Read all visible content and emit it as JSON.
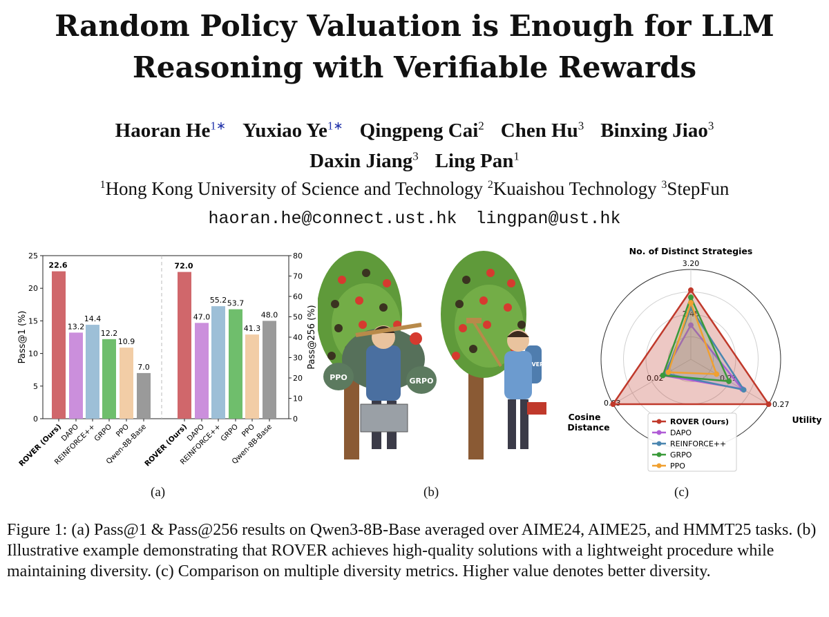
{
  "paper": {
    "title_line1": "Random Policy Valuation is Enough for LLM",
    "title_line2": "Reasoning with Verifiable Rewards",
    "authors_line1": [
      {
        "name": "Haoran He",
        "mark": "1∗"
      },
      {
        "name": "Yuxiao Ye",
        "mark": "1∗"
      },
      {
        "name": "Qingpeng Cai",
        "mark": "2"
      },
      {
        "name": "Chen Hu",
        "mark": "3"
      },
      {
        "name": "Binxing Jiao",
        "mark": "3"
      }
    ],
    "authors_line2": [
      {
        "name": "Daxin Jiang",
        "mark": "3"
      },
      {
        "name": "Ling Pan",
        "mark": "1"
      }
    ],
    "affiliations": [
      {
        "mark": "1",
        "name": "Hong Kong University of Science and Technology"
      },
      {
        "mark": "2",
        "name": "Kuaishou Technology"
      },
      {
        "mark": "3",
        "name": "StepFun"
      }
    ],
    "emails": [
      "haoran.he@connect.ust.hk",
      "lingpan@ust.hk"
    ],
    "panel_labels": [
      "(a)",
      "(b)",
      "(c)"
    ],
    "caption": "Figure 1: (a) Pass@1 & Pass@256 results on Qwen3-8B-Base averaged over AIME24, AIME25, and HMMT25 tasks. (b) Illustrative example demonstrating that ROVER achieves high-quality solutions with a lightweight procedure while maintaining diversity. (c) Comparison on multiple diversity metrics. Higher value denotes better diversity."
  },
  "illustration": {
    "left_bag_labels": [
      "PPO",
      "GRPO"
    ],
    "right_bag_label": "ROVER"
  },
  "colors": {
    "ROVER (Ours)": "#d0676b",
    "DAPO": "#cb8fdc",
    "REINFORCE++": "#9dbfd7",
    "GRPO": "#6fbe6c",
    "PPO": "#f2cda6",
    "Qwen-8B-Base": "#9a9a9a"
  },
  "chart_data": [
    {
      "type": "bar",
      "categories": [
        "ROVER (Ours)",
        "DAPO",
        "REINFORCE++",
        "GRPO",
        "PPO",
        "Qwen-8B-Base"
      ],
      "ylabel": "Pass@1 (%)",
      "ylim": [
        0,
        25
      ],
      "yticks": [
        0,
        5,
        10,
        15,
        20,
        25
      ],
      "values": [
        22.6,
        13.2,
        14.4,
        12.2,
        10.9,
        7.0
      ],
      "value_labels": [
        "22.6",
        "13.2",
        "14.4",
        "12.2",
        "10.9",
        "7.0"
      ]
    },
    {
      "type": "bar",
      "categories": [
        "ROVER (Ours)",
        "DAPO",
        "REINFORCE++",
        "GRPO",
        "PPO",
        "Qwen-8B-Base"
      ],
      "ylabel": "Pass@256 (%)",
      "ylim": [
        0,
        80
      ],
      "yticks": [
        0,
        10,
        20,
        30,
        40,
        50,
        60,
        70,
        80
      ],
      "values": [
        72.0,
        47.0,
        55.2,
        53.7,
        41.3,
        48.0
      ],
      "value_labels": [
        "72.0",
        "47.0",
        "55.2",
        "53.7",
        "41.3",
        "48.0"
      ]
    },
    {
      "type": "radar",
      "axes": [
        {
          "label": "No. of Distinct Strategies",
          "max": 3.2,
          "inner": 2.45,
          "max_label": "3.20",
          "inner_label": "2.45"
        },
        {
          "label": "Utility",
          "max": 0.27,
          "inner": 0.21,
          "max_label": "0.27",
          "inner_label": "0.21"
        },
        {
          "label": "Cosine Distance",
          "max": 0.03,
          "inner": 0.02,
          "max_label": "0.03",
          "inner_label": "0.02"
        }
      ],
      "series": [
        {
          "name": "ROVER (Ours)",
          "color": "#c0392b",
          "fraction": [
            0.77,
            1.0,
            1.0
          ]
        },
        {
          "name": "DAPO",
          "color": "#b05cd6",
          "fraction": [
            0.38,
            0.66,
            0.36
          ]
        },
        {
          "name": "REINFORCE++",
          "color": "#4a86b0",
          "fraction": [
            0.57,
            0.68,
            0.32
          ]
        },
        {
          "name": "GRPO",
          "color": "#3a9a3a",
          "fraction": [
            0.69,
            0.49,
            0.36
          ]
        },
        {
          "name": "PPO",
          "color": "#f0a030",
          "fraction": [
            0.63,
            0.33,
            0.29
          ]
        }
      ],
      "legend_position": "bottom"
    }
  ]
}
